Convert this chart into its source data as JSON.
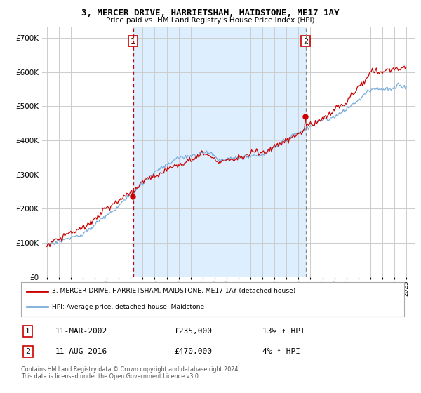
{
  "title": "3, MERCER DRIVE, HARRIETSHAM, MAIDSTONE, ME17 1AY",
  "subtitle": "Price paid vs. HM Land Registry's House Price Index (HPI)",
  "ytick_values": [
    0,
    100000,
    200000,
    300000,
    400000,
    500000,
    600000,
    700000
  ],
  "ylim": [
    0,
    730000
  ],
  "sale1": {
    "date_num": 2002.19,
    "price": 235000,
    "label": "1",
    "date_str": "11-MAR-2002",
    "hpi_pct": "13% ↑ HPI"
  },
  "sale2": {
    "date_num": 2016.61,
    "price": 470000,
    "label": "2",
    "date_str": "11-AUG-2016",
    "hpi_pct": "4% ↑ HPI"
  },
  "legend_line1": "3, MERCER DRIVE, HARRIETSHAM, MAIDSTONE, ME17 1AY (detached house)",
  "legend_line2": "HPI: Average price, detached house, Maidstone",
  "table_row1": [
    "1",
    "11-MAR-2002",
    "£235,000",
    "13% ↑ HPI"
  ],
  "table_row2": [
    "2",
    "11-AUG-2016",
    "£470,000",
    "4% ↑ HPI"
  ],
  "footnote": "Contains HM Land Registry data © Crown copyright and database right 2024.\nThis data is licensed under the Open Government Licence v3.0.",
  "line_color_red": "#cc0000",
  "line_color_blue": "#7aaddc",
  "shade_color": "#ddeeff",
  "bg_color": "#ffffff",
  "grid_color": "#cccccc"
}
